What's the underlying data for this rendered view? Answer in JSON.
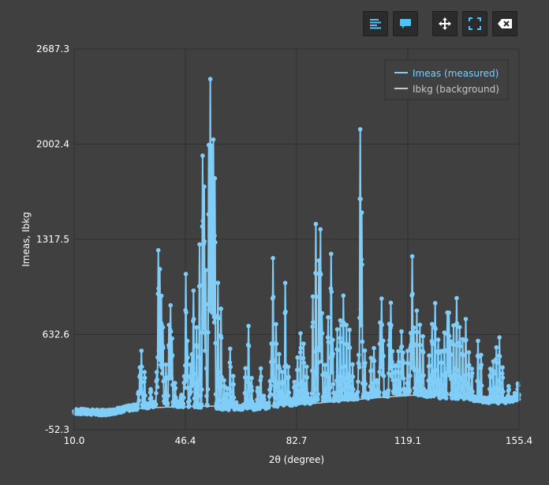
{
  "toolbar": {
    "buttons": [
      {
        "name": "toggle-list-button",
        "icon": "list-icon"
      },
      {
        "name": "toggle-tooltip-button",
        "icon": "speech-bubble-icon"
      },
      {
        "name": "pan-button",
        "icon": "move-arrows-icon"
      },
      {
        "name": "fit-view-button",
        "icon": "expand-icon"
      },
      {
        "name": "clear-button",
        "icon": "backspace-icon"
      }
    ]
  },
  "colors": {
    "background": "#404040",
    "grid": "#2f2f2f",
    "measured": "#80cef8",
    "background_series": "#c8c8c8",
    "icon_accent": "#4fc3f7"
  },
  "chart_data": {
    "type": "line",
    "xlabel": "2θ (degree)",
    "ylabel": "Imeas, Ibkg",
    "xlim": [
      10.0,
      155.4
    ],
    "ylim": [
      -52.3,
      2687.3
    ],
    "x_ticks": [
      "10.0",
      "46.4",
      "82.7",
      "119.1",
      "155.4"
    ],
    "y_ticks": [
      "-52.3",
      "632.6",
      "1317.5",
      "2002.4",
      "2687.3"
    ],
    "grid": true,
    "legend_position": "top-right",
    "series": [
      {
        "name": "Imeas (measured)",
        "markers": true,
        "baseline_points": [
          [
            10,
            80
          ],
          [
            20,
            70
          ],
          [
            30,
            110
          ],
          [
            40,
            140
          ],
          [
            50,
            120
          ],
          [
            60,
            110
          ],
          [
            70,
            110
          ],
          [
            80,
            140
          ],
          [
            90,
            160
          ],
          [
            100,
            180
          ],
          [
            110,
            200
          ],
          [
            120,
            220
          ],
          [
            130,
            190
          ],
          [
            140,
            170
          ],
          [
            150,
            150
          ],
          [
            155.4,
            180
          ]
        ],
        "peaks": [
          [
            31,
            230
          ],
          [
            31.5,
            400
          ],
          [
            32,
            500
          ],
          [
            33,
            380
          ],
          [
            35,
            250
          ],
          [
            37,
            350
          ],
          [
            37.5,
            1230
          ],
          [
            38,
            1100
          ],
          [
            38.5,
            900
          ],
          [
            39,
            700
          ],
          [
            40,
            400
          ],
          [
            41,
            700
          ],
          [
            41.5,
            850
          ],
          [
            42,
            600
          ],
          [
            43,
            300
          ],
          [
            45,
            200
          ],
          [
            46,
            350
          ],
          [
            46.5,
            1050
          ],
          [
            47,
            600
          ],
          [
            48,
            400
          ],
          [
            48.5,
            500
          ],
          [
            49,
            950
          ],
          [
            50,
            700
          ],
          [
            51,
            1300
          ],
          [
            52,
            1900
          ],
          [
            52.5,
            1700
          ],
          [
            53,
            1100
          ],
          [
            54,
            2000
          ],
          [
            54.5,
            2450
          ],
          [
            55,
            2000
          ],
          [
            55.5,
            2050
          ],
          [
            56,
            1750
          ],
          [
            57,
            1000
          ],
          [
            58,
            800
          ],
          [
            59,
            300
          ],
          [
            60,
            250
          ],
          [
            61,
            520
          ],
          [
            62,
            320
          ],
          [
            63,
            150
          ],
          [
            66,
            400
          ],
          [
            67,
            700
          ],
          [
            68,
            300
          ],
          [
            70,
            250
          ],
          [
            71,
            400
          ],
          [
            72,
            200
          ],
          [
            74,
            300
          ],
          [
            74.5,
            550
          ],
          [
            75,
            1170
          ],
          [
            76,
            700
          ],
          [
            77,
            500
          ],
          [
            78,
            350
          ],
          [
            79,
            1020
          ],
          [
            80,
            400
          ],
          [
            82,
            300
          ],
          [
            83,
            460
          ],
          [
            84,
            650
          ],
          [
            85,
            550
          ],
          [
            86,
            400
          ],
          [
            88,
            900
          ],
          [
            89,
            1420
          ],
          [
            90,
            1150
          ],
          [
            90.5,
            1400
          ],
          [
            91,
            800
          ],
          [
            92,
            400
          ],
          [
            93,
            750
          ],
          [
            94,
            1230
          ],
          [
            94.5,
            600
          ],
          [
            96,
            650
          ],
          [
            97,
            750
          ],
          [
            98,
            900
          ],
          [
            99,
            700
          ],
          [
            100,
            650
          ],
          [
            101,
            400
          ],
          [
            103,
            500
          ],
          [
            103.5,
            2100
          ],
          [
            104,
            1500
          ],
          [
            105,
            500
          ],
          [
            107,
            450
          ],
          [
            108,
            550
          ],
          [
            109,
            300
          ],
          [
            110,
            700
          ],
          [
            110.5,
            880
          ],
          [
            111,
            600
          ],
          [
            113,
            700
          ],
          [
            113.5,
            850
          ],
          [
            114,
            500
          ],
          [
            115,
            400
          ],
          [
            116,
            500
          ],
          [
            117,
            650
          ],
          [
            117.5,
            500
          ],
          [
            119,
            500
          ],
          [
            120,
            650
          ],
          [
            120.5,
            1180
          ],
          [
            121,
            700
          ],
          [
            122,
            800
          ],
          [
            123,
            700
          ],
          [
            124,
            600
          ],
          [
            126,
            500
          ],
          [
            127,
            700
          ],
          [
            128,
            850
          ],
          [
            129,
            600
          ],
          [
            130,
            500
          ],
          [
            131,
            650
          ],
          [
            132,
            800
          ],
          [
            132.5,
            780
          ],
          [
            133,
            600
          ],
          [
            134,
            700
          ],
          [
            135,
            900
          ],
          [
            136,
            700
          ],
          [
            137,
            600
          ],
          [
            138,
            750
          ],
          [
            139,
            500
          ],
          [
            140,
            400
          ],
          [
            142,
            600
          ],
          [
            143,
            500
          ],
          [
            146,
            400
          ],
          [
            147,
            450
          ],
          [
            148,
            550
          ],
          [
            149,
            600
          ],
          [
            150,
            400
          ],
          [
            152,
            250
          ],
          [
            154,
            200
          ],
          [
            155,
            270
          ]
        ]
      },
      {
        "name": "Ibkg (background)",
        "markers": false,
        "points": [
          [
            10,
            80
          ],
          [
            20,
            90
          ],
          [
            30,
            100
          ],
          [
            40,
            110
          ],
          [
            50,
            115
          ],
          [
            60,
            120
          ],
          [
            70,
            120
          ],
          [
            80,
            125
          ],
          [
            90,
            140
          ],
          [
            100,
            160
          ],
          [
            110,
            180
          ],
          [
            120,
            195
          ],
          [
            130,
            200
          ],
          [
            140,
            190
          ],
          [
            150,
            170
          ],
          [
            155.4,
            155
          ]
        ]
      }
    ]
  }
}
